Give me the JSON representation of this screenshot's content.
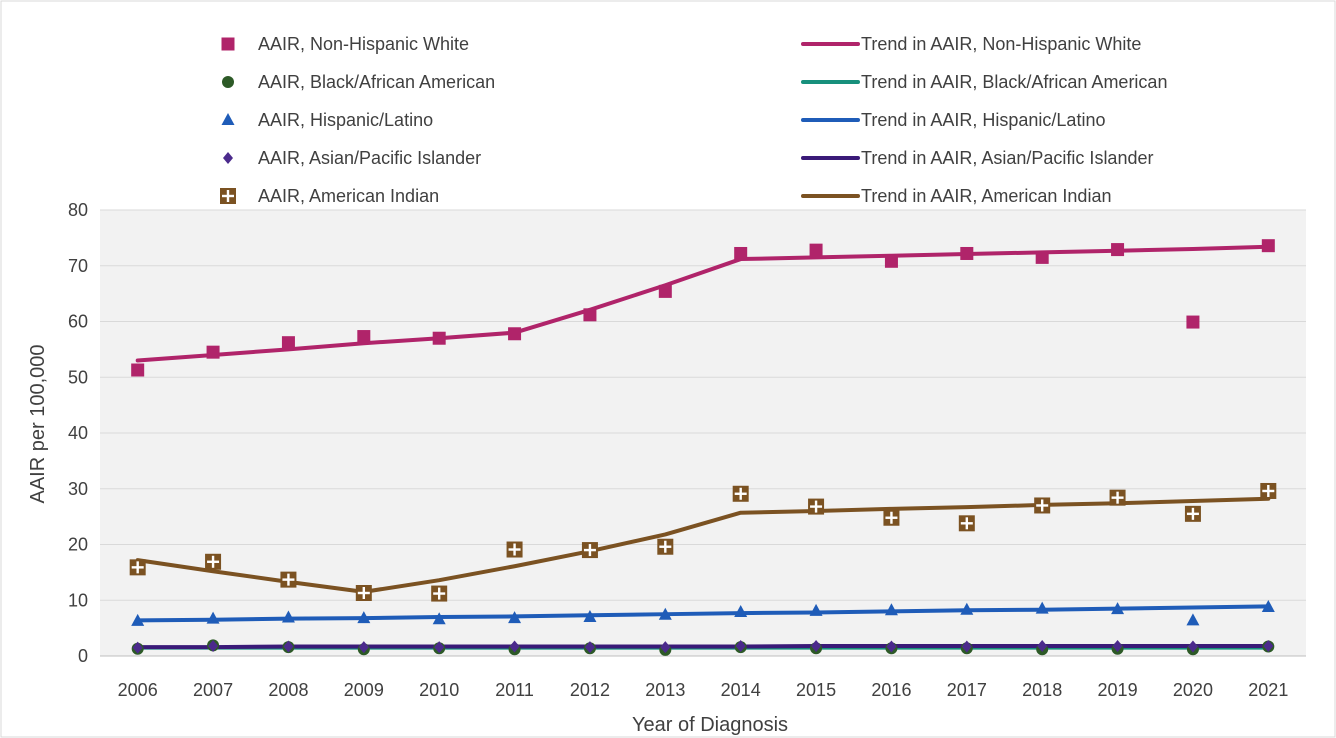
{
  "chart_data": {
    "type": "line",
    "title": "",
    "xlabel": "Year of Diagnosis",
    "ylabel": "AAIR per 100,000",
    "categories": [
      "2006",
      "2007",
      "2008",
      "2009",
      "2010",
      "2011",
      "2012",
      "2013",
      "2014",
      "2015",
      "2016",
      "2017",
      "2018",
      "2019",
      "2020",
      "2021"
    ],
    "ylim": [
      0,
      80
    ],
    "yticks": [
      0,
      10,
      20,
      30,
      40,
      50,
      60,
      70,
      80
    ],
    "grid": true,
    "legend_position": "top",
    "series": [
      {
        "name": "AAIR, Non-Hispanic White",
        "kind": "markers",
        "marker": "square",
        "color": "#B0246A",
        "values": [
          51.3,
          54.5,
          56.2,
          57.3,
          57.0,
          57.8,
          61.2,
          65.4,
          72.2,
          72.8,
          70.8,
          72.2,
          71.5,
          72.9,
          59.9,
          73.6
        ]
      },
      {
        "name": "Trend in AAIR, Non-Hispanic White",
        "kind": "line",
        "color": "#B0246A",
        "values": [
          53.0,
          54.0,
          55.0,
          56.1,
          57.0,
          58.0,
          62.1,
          66.5,
          71.2,
          71.5,
          71.8,
          72.1,
          72.4,
          72.7,
          73.0,
          73.4
        ]
      },
      {
        "name": "AAIR, Black/African American",
        "kind": "markers",
        "marker": "circle",
        "color": "#2D5A27",
        "values": [
          1.3,
          1.9,
          1.6,
          1.2,
          1.4,
          1.2,
          1.4,
          1.1,
          1.6,
          1.4,
          1.4,
          1.4,
          1.2,
          1.3,
          1.2,
          1.7
        ]
      },
      {
        "name": "Trend in AAIR, Black/African American",
        "kind": "line",
        "color": "#17907C",
        "values": [
          1.5,
          1.5,
          1.5,
          1.5,
          1.5,
          1.5,
          1.5,
          1.5,
          1.5,
          1.5,
          1.5,
          1.5,
          1.5,
          1.5,
          1.5,
          1.5
        ]
      },
      {
        "name": "AAIR, Hispanic/Latino",
        "kind": "markers",
        "marker": "triangle",
        "color": "#1F5CB8",
        "values": [
          6.3,
          6.7,
          6.9,
          6.8,
          6.6,
          6.8,
          7.0,
          7.4,
          7.9,
          8.1,
          8.2,
          8.3,
          8.5,
          8.4,
          6.4,
          8.8
        ]
      },
      {
        "name": "Trend in AAIR, Hispanic/Latino",
        "kind": "line",
        "color": "#1F5CB8",
        "values": [
          6.4,
          6.5,
          6.7,
          6.8,
          7.0,
          7.1,
          7.3,
          7.5,
          7.7,
          7.8,
          8.0,
          8.2,
          8.3,
          8.5,
          8.7,
          8.9
        ]
      },
      {
        "name": "AAIR, Asian/Pacific Islander",
        "kind": "markers",
        "marker": "diamond",
        "color": "#4B2A8C",
        "values": [
          1.5,
          1.8,
          1.7,
          1.6,
          1.6,
          1.7,
          1.6,
          1.6,
          1.8,
          1.8,
          1.7,
          1.7,
          1.8,
          1.8,
          1.7,
          1.8
        ]
      },
      {
        "name": "Trend in AAIR, Asian/Pacific Islander",
        "kind": "line",
        "color": "#3A1A78",
        "values": [
          1.6,
          1.6,
          1.7,
          1.7,
          1.7,
          1.7,
          1.7,
          1.7,
          1.7,
          1.8,
          1.8,
          1.8,
          1.8,
          1.8,
          1.8,
          1.8
        ]
      },
      {
        "name": "AAIR, American Indian",
        "kind": "markers",
        "marker": "plus-square",
        "color": "#7B5222",
        "values": [
          15.9,
          16.9,
          13.7,
          11.3,
          11.2,
          19.1,
          19.0,
          19.6,
          29.1,
          26.8,
          24.8,
          23.8,
          27.0,
          28.4,
          25.5,
          29.6
        ]
      },
      {
        "name": "Trend in AAIR, American Indian",
        "kind": "line",
        "color": "#7B5222",
        "values": [
          17.2,
          15.2,
          13.3,
          11.5,
          13.6,
          16.1,
          18.8,
          21.8,
          25.7,
          26.0,
          26.4,
          26.7,
          27.1,
          27.4,
          27.8,
          28.2
        ]
      }
    ]
  }
}
